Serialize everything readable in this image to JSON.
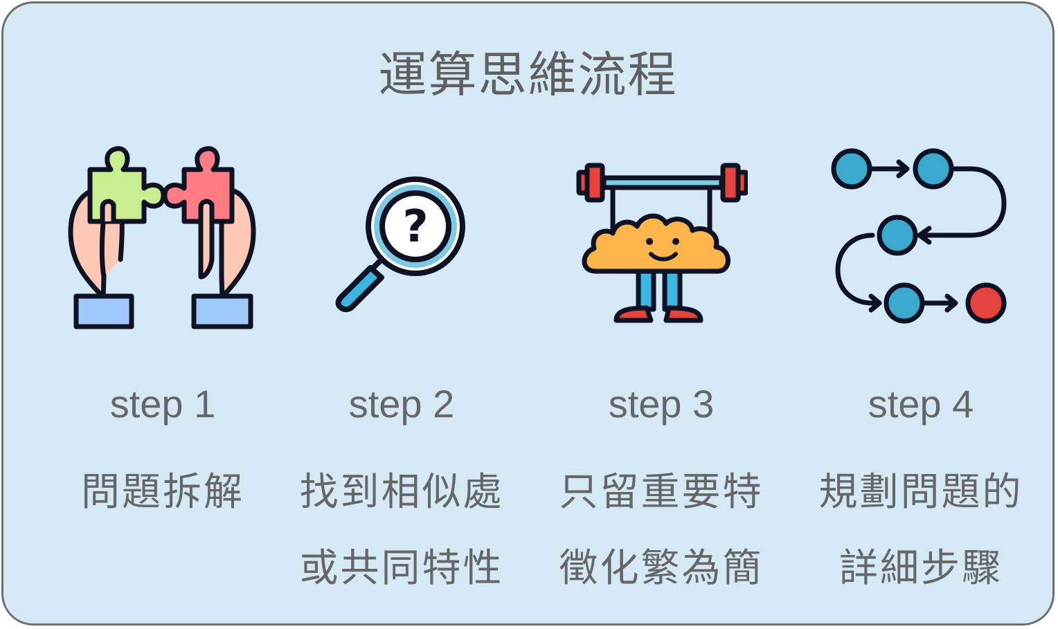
{
  "title": "運算思維流程",
  "steps": [
    {
      "label": "step 1",
      "lines": [
        "問題拆解"
      ],
      "icon": "puzzle-hands-icon"
    },
    {
      "label": "step 2",
      "lines": [
        "找到相似處",
        "或共同特性"
      ],
      "icon": "magnifier-question-icon"
    },
    {
      "label": "step 3",
      "lines": [
        "只留重要特",
        "徵化繁為簡"
      ],
      "icon": "brain-weightlifting-icon"
    },
    {
      "label": "step 4",
      "lines": [
        "規劃問題的",
        "詳細步驟"
      ],
      "icon": "flow-path-icon"
    }
  ],
  "colors": {
    "background": "#d5e9f5",
    "border": "#6e6e6e",
    "text": "#666666",
    "green_piece": "#c8ed90",
    "red_piece": "#fe7c83",
    "skin": "#fdc9b6",
    "sleeve": "#9fc9fb",
    "node_blue": "#3ba9cd",
    "node_red": "#e5433f",
    "brain": "#fdb44a"
  }
}
